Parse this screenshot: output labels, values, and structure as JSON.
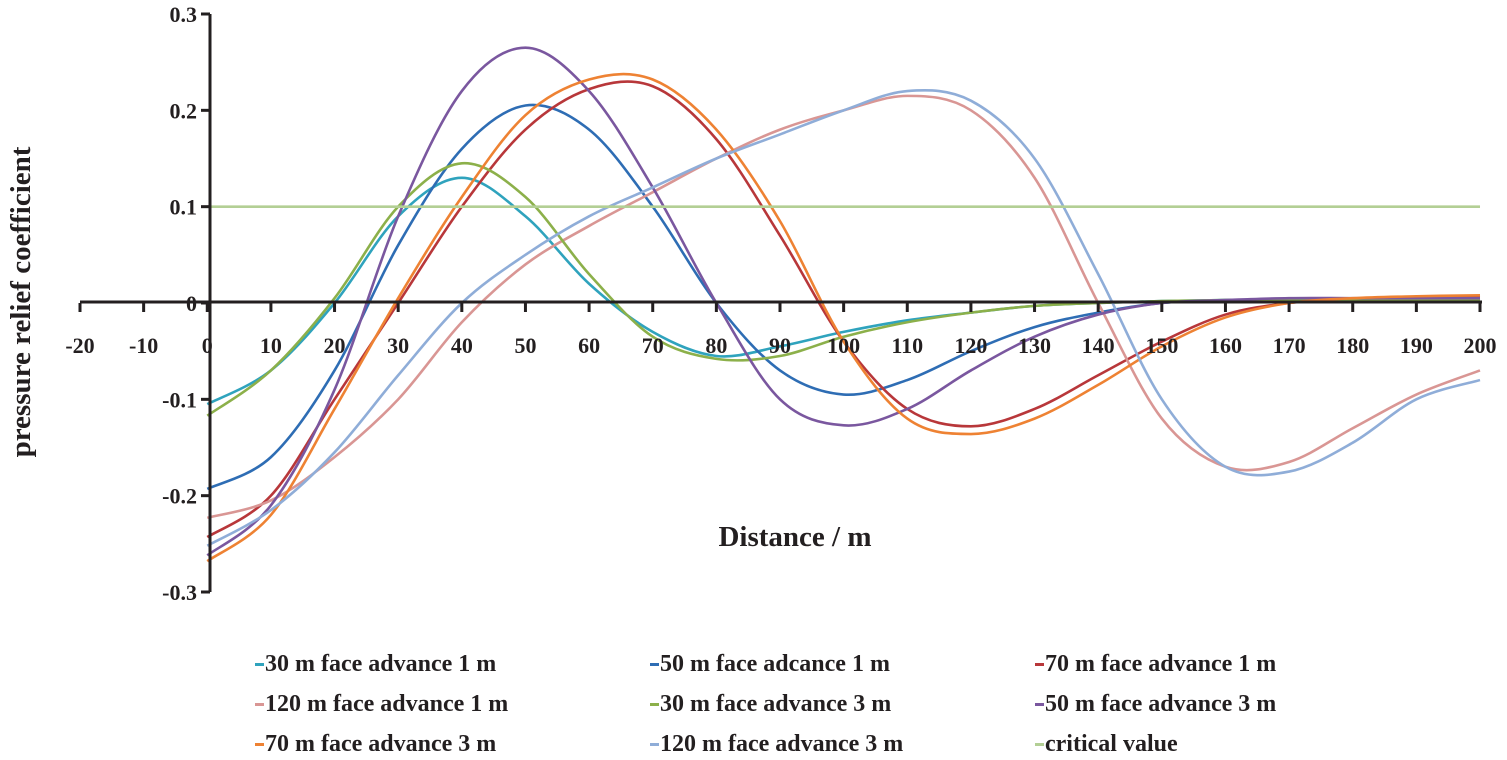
{
  "chart_data": {
    "type": "line",
    "title": "",
    "xlabel": "Distance / m",
    "ylabel": "pressure relief coefficient",
    "xlim": [
      -20,
      200
    ],
    "ylim": [
      -0.3,
      0.3
    ],
    "xticks": [
      "-20",
      "-10",
      "0",
      "10",
      "20",
      "30",
      "40",
      "50",
      "60",
      "70",
      "80",
      "90",
      "100",
      "110",
      "120",
      "130",
      "140",
      "150",
      "160",
      "170",
      "180",
      "190",
      "200"
    ],
    "yticks": [
      "0.3",
      "0.2",
      "0.1",
      "0",
      "-0.1",
      "-0.2",
      "-0.3"
    ],
    "legend_position": "bottom",
    "x": [
      0,
      10,
      20,
      30,
      40,
      50,
      60,
      70,
      80,
      90,
      100,
      110,
      120,
      130,
      140,
      150,
      160,
      170,
      180,
      190,
      200
    ],
    "series": [
      {
        "name": "30 m face advance 1 m",
        "color": "#2fa3bd",
        "values": [
          -0.105,
          -0.07,
          0.0,
          0.09,
          0.13,
          0.09,
          0.02,
          -0.03,
          -0.055,
          -0.045,
          -0.03,
          -0.018,
          -0.01,
          -0.003,
          0.0,
          0.002,
          0.003,
          0.004,
          0.004,
          0.004,
          0.004
        ]
      },
      {
        "name": "50 m face adcance 1 m",
        "color": "#2e6db4",
        "values": [
          -0.193,
          -0.16,
          -0.07,
          0.06,
          0.16,
          0.205,
          0.18,
          0.1,
          0.0,
          -0.07,
          -0.095,
          -0.08,
          -0.05,
          -0.025,
          -0.01,
          0.0,
          0.003,
          0.004,
          0.004,
          0.004,
          0.004
        ]
      },
      {
        "name": "70 m face advance 1 m",
        "color": "#b8373a",
        "values": [
          -0.243,
          -0.2,
          -0.1,
          0.0,
          0.1,
          0.18,
          0.222,
          0.225,
          0.17,
          0.07,
          -0.04,
          -0.11,
          -0.128,
          -0.11,
          -0.075,
          -0.04,
          -0.012,
          0.0,
          0.004,
          0.006,
          0.007
        ]
      },
      {
        "name": "120 m face advance 1 m",
        "color": "#d99694",
        "values": [
          -0.223,
          -0.205,
          -0.16,
          -0.1,
          -0.02,
          0.04,
          0.08,
          0.115,
          0.15,
          0.18,
          0.2,
          0.215,
          0.2,
          0.13,
          0.0,
          -0.12,
          -0.17,
          -0.165,
          -0.13,
          -0.095,
          -0.07
        ]
      },
      {
        "name": "30 m face advance 3 m",
        "color": "#8cb04a",
        "values": [
          -0.117,
          -0.07,
          0.005,
          0.1,
          0.145,
          0.11,
          0.03,
          -0.035,
          -0.058,
          -0.055,
          -0.035,
          -0.02,
          -0.01,
          -0.003,
          0.0,
          0.002,
          0.003,
          0.003,
          0.003,
          0.003,
          0.003
        ]
      },
      {
        "name": "50 m face advance 3 m",
        "color": "#7a579f",
        "values": [
          -0.262,
          -0.21,
          -0.09,
          0.09,
          0.22,
          0.265,
          0.22,
          0.12,
          0.0,
          -0.1,
          -0.127,
          -0.11,
          -0.07,
          -0.035,
          -0.012,
          0.0,
          0.003,
          0.005,
          0.005,
          0.005,
          0.005
        ]
      },
      {
        "name": "70 m face advance 3 m",
        "color": "#ee8233",
        "values": [
          -0.268,
          -0.22,
          -0.11,
          0.005,
          0.11,
          0.195,
          0.232,
          0.232,
          0.18,
          0.085,
          -0.04,
          -0.12,
          -0.136,
          -0.12,
          -0.085,
          -0.045,
          -0.015,
          0.0,
          0.005,
          0.007,
          0.008
        ]
      },
      {
        "name": "120 m face advance 3 m",
        "color": "#8fadd8",
        "values": [
          -0.252,
          -0.215,
          -0.155,
          -0.075,
          0.0,
          0.05,
          0.09,
          0.12,
          0.15,
          0.175,
          0.2,
          0.22,
          0.21,
          0.15,
          0.03,
          -0.1,
          -0.17,
          -0.175,
          -0.145,
          -0.1,
          -0.08
        ]
      },
      {
        "name": "critical value",
        "color": "#b3cf95",
        "values": [
          0.1,
          0.1,
          0.1,
          0.1,
          0.1,
          0.1,
          0.1,
          0.1,
          0.1,
          0.1,
          0.1,
          0.1,
          0.1,
          0.1,
          0.1,
          0.1,
          0.1,
          0.1,
          0.1,
          0.1,
          0.1
        ]
      }
    ]
  }
}
